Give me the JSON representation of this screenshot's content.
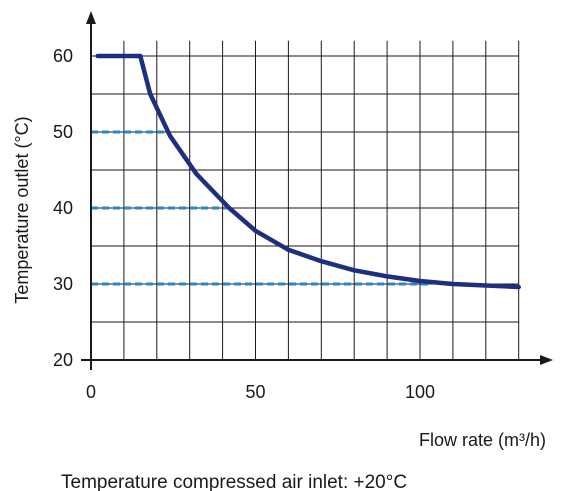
{
  "chart_data": {
    "type": "line",
    "title": "",
    "xlabel": "Flow rate (m³/h)",
    "ylabel": "Temperature outlet (°C)",
    "footnote": "Temperature compressed air inlet: +20°C",
    "xlim": [
      0,
      130
    ],
    "ylim": [
      20,
      63
    ],
    "x_ticks": [
      0,
      50,
      100
    ],
    "x_tick_labels": [
      "0",
      "50",
      "100"
    ],
    "y_ticks": [
      20,
      30,
      40,
      50,
      60
    ],
    "y_tick_labels": [
      "20",
      "30",
      "40",
      "50",
      "60"
    ],
    "x_gridlines": [
      0,
      10,
      20,
      30,
      40,
      50,
      60,
      70,
      80,
      90,
      100,
      110,
      120,
      130
    ],
    "y_gridlines": [
      20,
      25,
      30,
      35,
      40,
      45,
      50,
      55,
      60
    ],
    "grid": true,
    "series": [
      {
        "color": "#1d2f7f",
        "points": [
          [
            2,
            60
          ],
          [
            15,
            60
          ],
          [
            18,
            55
          ],
          [
            24,
            49.5
          ],
          [
            32,
            44.5
          ],
          [
            42,
            40
          ],
          [
            50,
            37
          ],
          [
            60,
            34.5
          ],
          [
            70,
            33
          ],
          [
            80,
            31.8
          ],
          [
            90,
            31
          ],
          [
            100,
            30.4
          ],
          [
            110,
            30
          ],
          [
            120,
            29.8
          ],
          [
            130,
            29.6
          ]
        ]
      }
    ],
    "reference_lines": [
      {
        "y": 50,
        "x_from": 0,
        "x_to": 23.5,
        "color": "#2b86c8"
      },
      {
        "y": 40,
        "x_from": 0,
        "x_to": 42,
        "color": "#2b86c8"
      },
      {
        "y": 30,
        "x_from": 0,
        "x_to": 103,
        "color": "#2b86c8"
      }
    ]
  }
}
